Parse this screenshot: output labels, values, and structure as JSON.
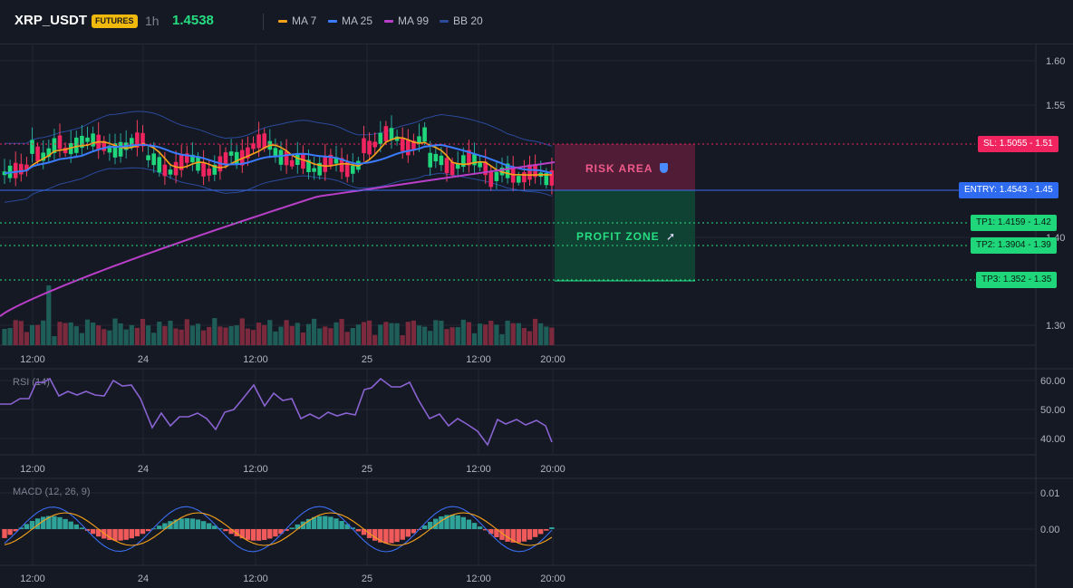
{
  "header": {
    "symbol": "XRP_USDT",
    "badge": "FUTURES",
    "timeframe": "1h",
    "price": "1.4538",
    "legend": [
      {
        "label": "MA 7",
        "color": "#f7a21b"
      },
      {
        "label": "MA 25",
        "color": "#3b7cff"
      },
      {
        "label": "MA 99",
        "color": "#b93fc9"
      },
      {
        "label": "BB 20",
        "color": "#2a4a9a"
      }
    ]
  },
  "colors": {
    "up": "#26a69a",
    "down": "#f23f5d",
    "bg": "#151924",
    "grid": "#222734"
  },
  "main_axis": {
    "ticks": [
      "1.60",
      "1.55",
      "1.40",
      "1.30"
    ]
  },
  "time_axis": [
    "12:00",
    "24",
    "12:00",
    "25",
    "12:00",
    "20:00"
  ],
  "trade": {
    "risk_label": "RISK AREA",
    "profit_label": "PROFIT ZONE",
    "sl": {
      "label": "SL: 1.5055",
      "short": "1.51"
    },
    "entry": {
      "label": "ENTRY: 1.4543",
      "short": "1.45"
    },
    "tp1": {
      "label": "TP1: 1.4159",
      "short": "1.42"
    },
    "tp2": {
      "label": "TP2: 1.3904",
      "short": "1.39"
    },
    "tp3": {
      "label": "TP3: 1.352",
      "short": "1.35"
    }
  },
  "rsi": {
    "label": "RSI (14)",
    "ticks": [
      "60.00",
      "50.00",
      "40.00"
    ]
  },
  "macd": {
    "label": "MACD (12, 26, 9)",
    "ticks": [
      "0.01",
      "0.00"
    ]
  }
}
